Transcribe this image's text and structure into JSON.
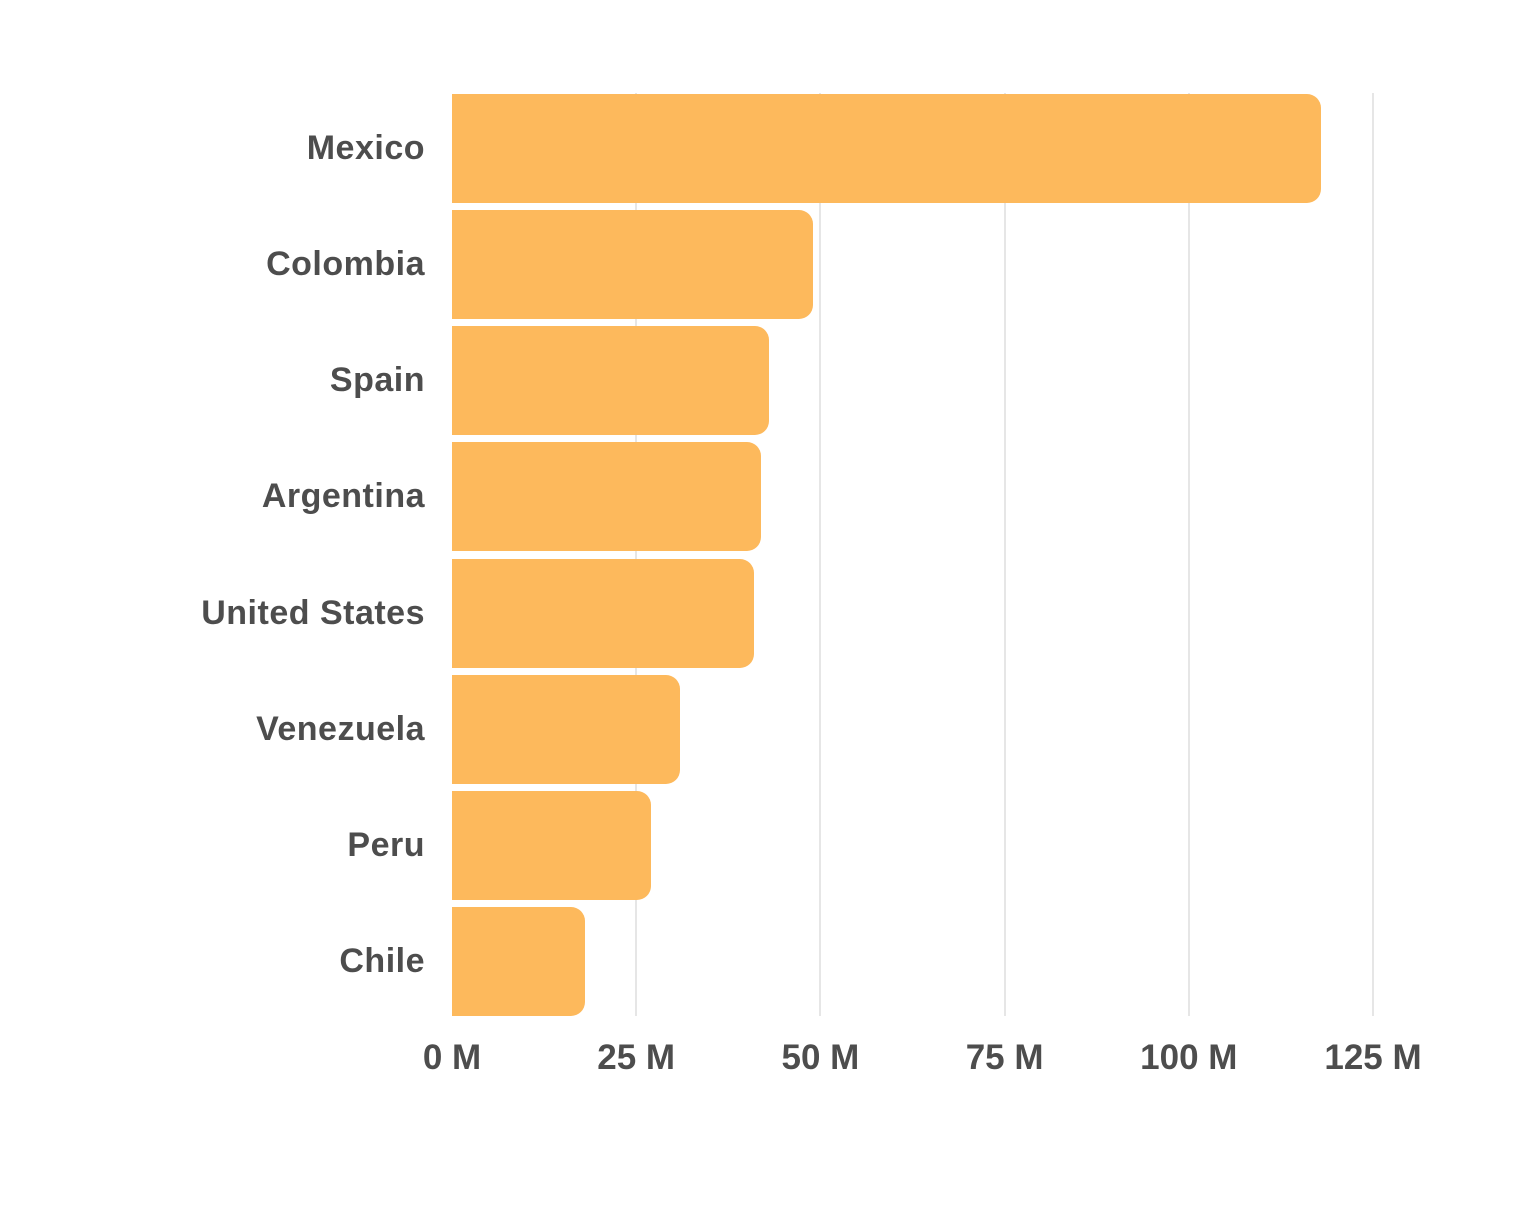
{
  "chart_data": {
    "type": "bar",
    "orientation": "horizontal",
    "categories": [
      "Mexico",
      "Colombia",
      "Spain",
      "Argentina",
      "United States",
      "Venezuela",
      "Peru",
      "Chile"
    ],
    "values": [
      118,
      49,
      43,
      42,
      41,
      31,
      27,
      18
    ],
    "value_unit": "M",
    "x_ticks": [
      0,
      25,
      50,
      75,
      100,
      125
    ],
    "x_tick_labels": [
      "0 M",
      "25 M",
      "50 M",
      "75 M",
      "100 M",
      "125 M"
    ],
    "xlim": [
      0,
      130
    ],
    "grid": true,
    "legend": false,
    "colors": {
      "bar": "#FDB95C",
      "label": "#4D4D4D",
      "gridline": "#E6E6E6",
      "background": "#FFFFFF"
    }
  }
}
